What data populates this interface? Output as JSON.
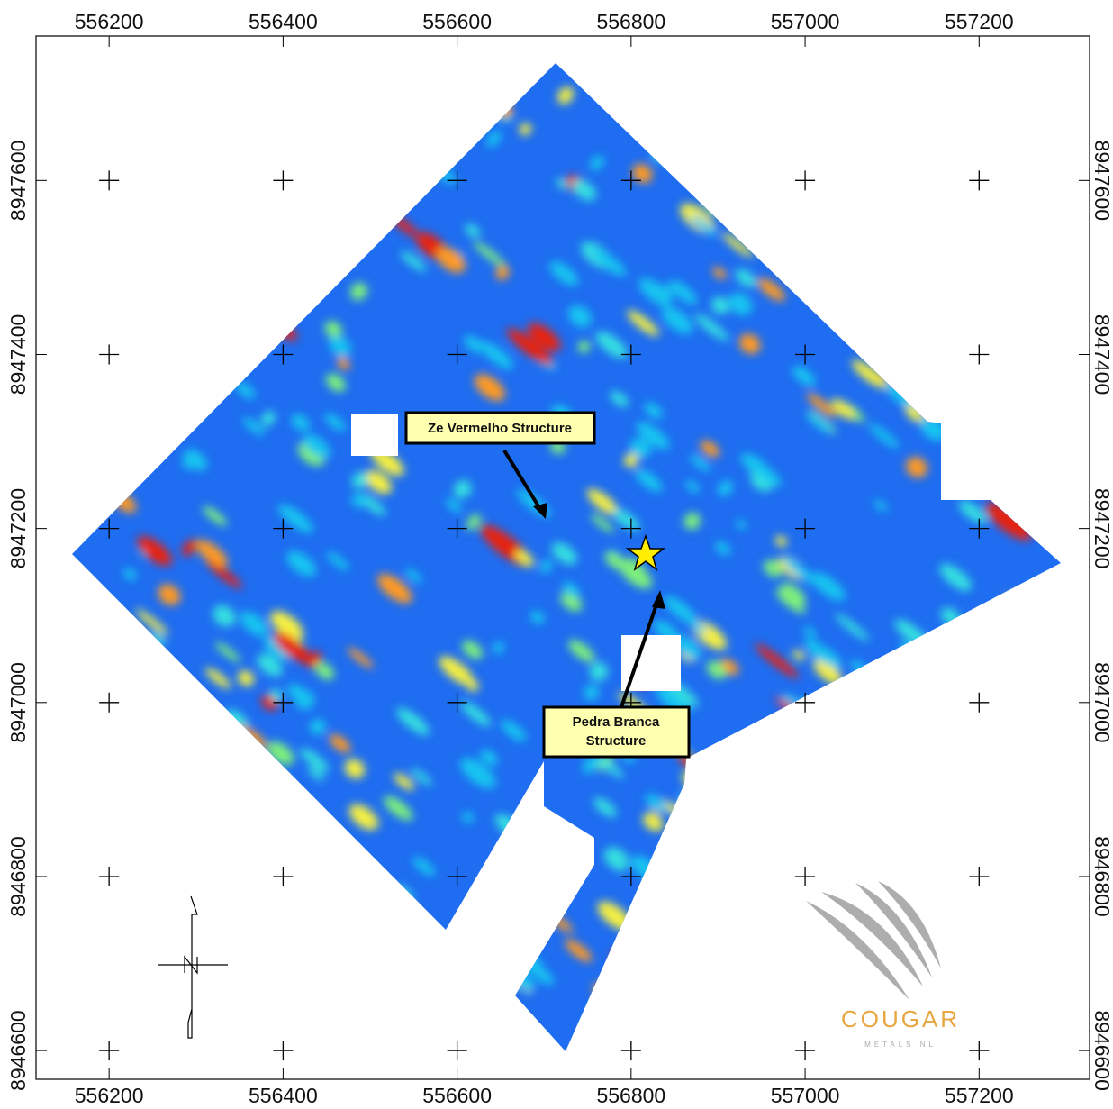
{
  "map": {
    "xlim": [
      556116,
      557327
    ],
    "ylim": [
      8946567,
      8947766
    ],
    "xticks": [
      556200,
      556400,
      556600,
      556800,
      557000,
      557200
    ],
    "yticks": [
      8946600,
      8946800,
      8947000,
      8947200,
      8947400,
      8947600
    ],
    "annotations": [
      {
        "text": "Ze Vermelho Structure"
      },
      {
        "lines": [
          "Pedra Branca",
          "Structure"
        ]
      }
    ],
    "logo": {
      "name": "COUGAR",
      "subtitle": "METALS NL"
    }
  }
}
